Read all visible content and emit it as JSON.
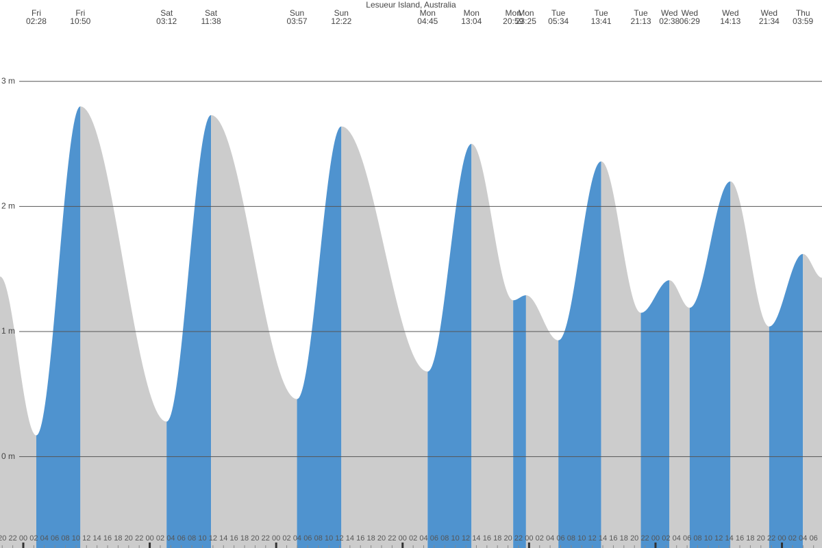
{
  "chart_data": {
    "type": "tide",
    "title": "Lesueur Island, Australia",
    "start_height": 1.44,
    "end_height": 1.43,
    "extremes": [
      {
        "day": "Fri",
        "time": "02:28",
        "height": 0.17
      },
      {
        "day": "Fri",
        "time": "10:50",
        "height": 2.8
      },
      {
        "day": "Sat",
        "time": "03:12",
        "height": 0.28
      },
      {
        "day": "Sat",
        "time": "11:38",
        "height": 2.73
      },
      {
        "day": "Sun",
        "time": "03:57",
        "height": 0.46
      },
      {
        "day": "Sun",
        "time": "12:22",
        "height": 2.64
      },
      {
        "day": "Mon",
        "time": "04:45",
        "height": 0.68
      },
      {
        "day": "Mon",
        "time": "13:04",
        "height": 2.5
      },
      {
        "day": "Mon",
        "time": "20:59",
        "height": 1.25
      },
      {
        "day": "Mon",
        "time": "23:25",
        "height": 1.29
      },
      {
        "day": "Tue",
        "time": "05:34",
        "height": 0.93
      },
      {
        "day": "Tue",
        "time": "13:41",
        "height": 2.36
      },
      {
        "day": "Tue",
        "time": "21:13",
        "height": 1.15
      },
      {
        "day": "Wed",
        "time": "02:38",
        "height": 1.41
      },
      {
        "day": "Wed",
        "time": "06:29",
        "height": 1.19
      },
      {
        "day": "Wed",
        "time": "14:13",
        "height": 2.2
      },
      {
        "day": "Wed",
        "time": "21:34",
        "height": 1.04
      },
      {
        "day": "Thu",
        "time": "03:59",
        "height": 1.62
      }
    ],
    "rising_color": "#4f93cf",
    "falling_color": "#cccccc",
    "xlim": [
      -4.42,
      151.6
    ],
    "ylim": [
      -0.73,
      3.65
    ],
    "yticks": [
      {
        "value": 0,
        "label": "0 m"
      },
      {
        "value": 1,
        "label": "1 m"
      },
      {
        "value": 2,
        "label": "2 m"
      },
      {
        "value": 3,
        "label": "3 m"
      }
    ],
    "xticks": [
      {
        "value": -4,
        "label": "20"
      },
      {
        "value": -2,
        "label": "22"
      },
      {
        "value": 0,
        "label": "00"
      },
      {
        "value": 2,
        "label": "02"
      },
      {
        "value": 4,
        "label": "04"
      },
      {
        "value": 6,
        "label": "06"
      },
      {
        "value": 8,
        "label": "08"
      },
      {
        "value": 10,
        "label": "10"
      },
      {
        "value": 12,
        "label": "12"
      },
      {
        "value": 14,
        "label": "14"
      },
      {
        "value": 16,
        "label": "16"
      },
      {
        "value": 18,
        "label": "18"
      },
      {
        "value": 20,
        "label": "20"
      },
      {
        "value": 22,
        "label": "22"
      },
      {
        "value": 24,
        "label": "00"
      },
      {
        "value": 26,
        "label": "02"
      },
      {
        "value": 28,
        "label": "04"
      },
      {
        "value": 30,
        "label": "06"
      },
      {
        "value": 32,
        "label": "08"
      },
      {
        "value": 34,
        "label": "10"
      },
      {
        "value": 36,
        "label": "12"
      },
      {
        "value": 38,
        "label": "14"
      },
      {
        "value": 40,
        "label": "16"
      },
      {
        "value": 42,
        "label": "18"
      },
      {
        "value": 44,
        "label": "20"
      },
      {
        "value": 46,
        "label": "22"
      },
      {
        "value": 48,
        "label": "00"
      },
      {
        "value": 50,
        "label": "02"
      },
      {
        "value": 52,
        "label": "04"
      },
      {
        "value": 54,
        "label": "06"
      },
      {
        "value": 56,
        "label": "08"
      },
      {
        "value": 58,
        "label": "10"
      },
      {
        "value": 60,
        "label": "12"
      },
      {
        "value": 62,
        "label": "14"
      },
      {
        "value": 64,
        "label": "16"
      },
      {
        "value": 66,
        "label": "18"
      },
      {
        "value": 68,
        "label": "20"
      },
      {
        "value": 70,
        "label": "22"
      },
      {
        "value": 72,
        "label": "00"
      },
      {
        "value": 74,
        "label": "02"
      },
      {
        "value": 76,
        "label": "04"
      },
      {
        "value": 78,
        "label": "06"
      },
      {
        "value": 80,
        "label": "08"
      },
      {
        "value": 82,
        "label": "10"
      },
      {
        "value": 84,
        "label": "12"
      },
      {
        "value": 86,
        "label": "14"
      },
      {
        "value": 88,
        "label": "16"
      },
      {
        "value": 90,
        "label": "18"
      },
      {
        "value": 92,
        "label": "20"
      },
      {
        "value": 94,
        "label": "22"
      },
      {
        "value": 96,
        "label": "00"
      },
      {
        "value": 98,
        "label": "02"
      },
      {
        "value": 100,
        "label": "04"
      },
      {
        "value": 102,
        "label": "06"
      },
      {
        "value": 104,
        "label": "08"
      },
      {
        "value": 106,
        "label": "10"
      },
      {
        "value": 108,
        "label": "12"
      },
      {
        "value": 110,
        "label": "14"
      },
      {
        "value": 112,
        "label": "16"
      },
      {
        "value": 114,
        "label": "18"
      },
      {
        "value": 116,
        "label": "20"
      },
      {
        "value": 118,
        "label": "22"
      },
      {
        "value": 120,
        "label": "00"
      },
      {
        "value": 122,
        "label": "02"
      },
      {
        "value": 124,
        "label": "04"
      },
      {
        "value": 126,
        "label": "06"
      },
      {
        "value": 128,
        "label": "08"
      },
      {
        "value": 130,
        "label": "10"
      },
      {
        "value": 132,
        "label": "12"
      },
      {
        "value": 134,
        "label": "14"
      },
      {
        "value": 136,
        "label": "16"
      },
      {
        "value": 138,
        "label": "18"
      },
      {
        "value": 140,
        "label": "20"
      },
      {
        "value": 142,
        "label": "22"
      },
      {
        "value": 144,
        "label": "00"
      },
      {
        "value": 146,
        "label": "02"
      },
      {
        "value": 148,
        "label": "04"
      },
      {
        "value": 150,
        "label": "06"
      }
    ]
  }
}
